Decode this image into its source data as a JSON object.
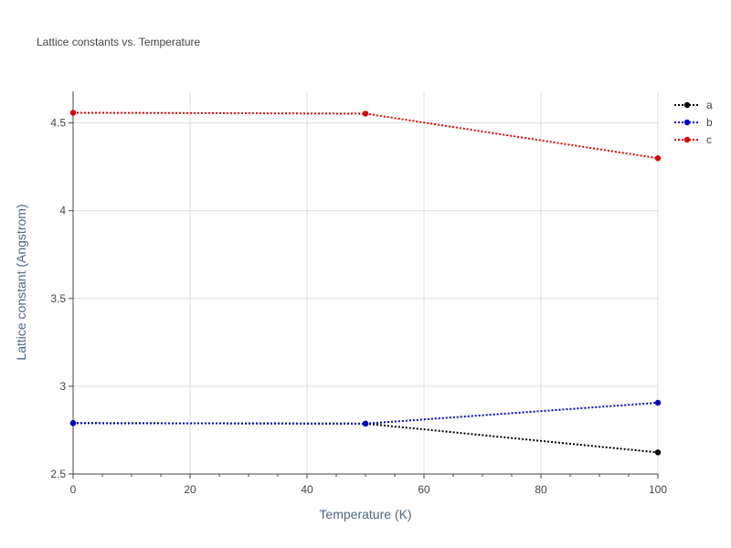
{
  "chart_data": {
    "type": "line",
    "title": "Lattice constants vs. Temperature",
    "xlabel": "Temperature (K)",
    "ylabel": "Lattice constant (Angstrom)",
    "xlim": [
      0,
      100
    ],
    "ylim": [
      2.5,
      4.68
    ],
    "xticks": [
      0,
      20,
      40,
      60,
      80,
      100
    ],
    "xtick_labels": [
      "0",
      "20",
      "40",
      "60",
      "80",
      "100"
    ],
    "yticks": [
      2.5,
      3,
      3.5,
      4,
      4.5
    ],
    "ytick_labels": [
      "2.5",
      "3",
      "3.5",
      "4",
      "4.5"
    ],
    "grid": true,
    "legend_position": "top-right",
    "series": [
      {
        "name": "a",
        "color": "#000000",
        "x": [
          0,
          50,
          100
        ],
        "y": [
          2.79,
          2.787,
          2.623
        ]
      },
      {
        "name": "b",
        "color": "#0000cc",
        "x": [
          0,
          50,
          100
        ],
        "y": [
          2.79,
          2.787,
          2.906
        ]
      },
      {
        "name": "c",
        "color": "#e00000",
        "x": [
          0,
          50,
          100
        ],
        "y": [
          4.558,
          4.553,
          4.299
        ]
      }
    ]
  }
}
